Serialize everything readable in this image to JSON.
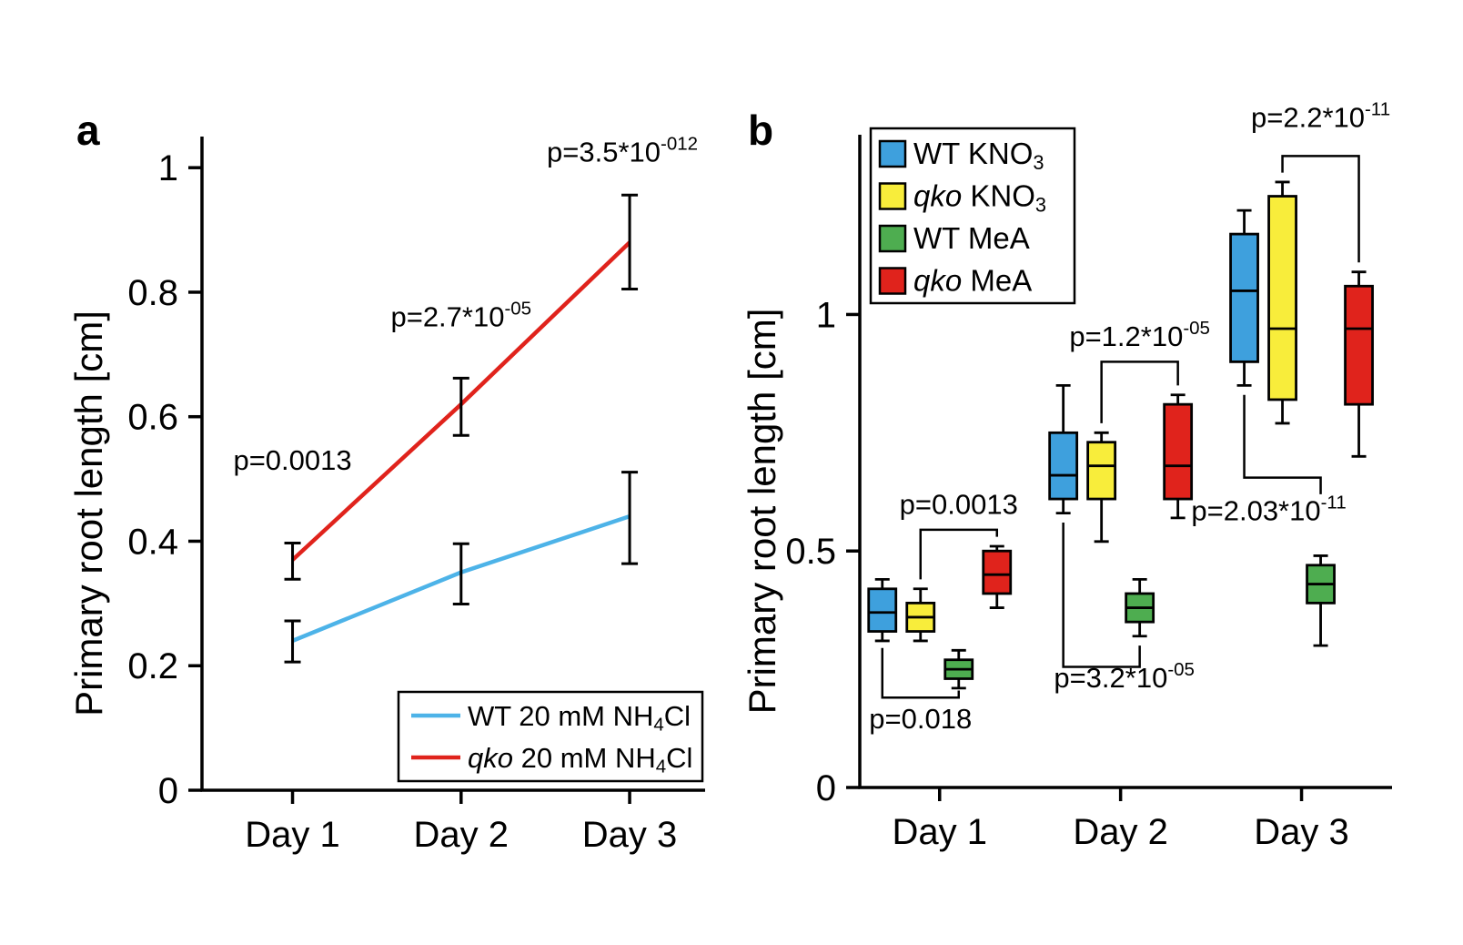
{
  "figure": {
    "background": "#ffffff",
    "text_color": "#000000"
  },
  "panels": {
    "a": {
      "label": "a"
    },
    "b": {
      "label": "b"
    }
  },
  "chart_data": [
    {
      "panel": "a",
      "type": "line",
      "title": "",
      "xlabel": "",
      "ylabel": "Primary root length [cm]",
      "ylim": [
        0,
        1.05
      ],
      "yticks": [
        0,
        0.2,
        0.4,
        0.6,
        0.8,
        1
      ],
      "ytick_labels": [
        "0",
        "0.2",
        "0.4",
        "0.6",
        "0.8",
        "1"
      ],
      "categories": [
        "Day 1",
        "Day 2",
        "Day 3"
      ],
      "grid": false,
      "legend_position": "bottom-right",
      "series": [
        {
          "name": "WT 20 mM NH4Cl",
          "label_segments": [
            {
              "t": "WT 20 mM NH"
            },
            {
              "t": "4",
              "sub": true
            },
            {
              "t": "Cl"
            }
          ],
          "color": "#4db3e8",
          "values": [
            0.24,
            0.35,
            0.44
          ],
          "err_minus": [
            0.034,
            0.051,
            0.076
          ],
          "err_plus": [
            0.032,
            0.046,
            0.071
          ]
        },
        {
          "name": "qko 20 mM NH4Cl",
          "label_segments": [
            {
              "t": "qko",
              "italic": true
            },
            {
              "t": " 20 mM NH"
            },
            {
              "t": "4",
              "sub": true
            },
            {
              "t": "Cl"
            }
          ],
          "color": "#e0231c",
          "values": [
            0.37,
            0.62,
            0.88
          ],
          "err_minus": [
            0.031,
            0.05,
            0.075
          ],
          "err_plus": [
            0.027,
            0.042,
            0.076
          ]
        }
      ],
      "annotations": [
        {
          "name": "p=0.0013",
          "segments": [
            {
              "t": "p=0.0013"
            }
          ],
          "day": 0,
          "y": 0.515,
          "dx": 0
        },
        {
          "name": "p=2.7*10^-05",
          "segments": [
            {
              "t": "p=2.7*10"
            },
            {
              "t": "-05",
              "sup": true
            }
          ],
          "day": 1,
          "y": 0.745,
          "dx": 0
        },
        {
          "name": "p=3.5*10^-012",
          "segments": [
            {
              "t": "p=3.5*10"
            },
            {
              "t": "-012",
              "sup": true
            }
          ],
          "day": 2,
          "y": 1.01,
          "dx": -8
        }
      ]
    },
    {
      "panel": "b",
      "type": "box",
      "title": "",
      "xlabel": "",
      "ylabel": "Primary root length [cm]",
      "ylim": [
        0,
        1.38
      ],
      "yticks": [
        0,
        0.5,
        1
      ],
      "ytick_labels": [
        "0",
        "0.5",
        "1"
      ],
      "categories": [
        "Day 1",
        "Day 2",
        "Day 3"
      ],
      "grid": false,
      "legend_position": "top-left",
      "groups": [
        {
          "name": "WT KNO3",
          "label_segments": [
            {
              "t": "WT KNO"
            },
            {
              "t": "3",
              "sub": true
            }
          ],
          "color": "#3ea0dd",
          "boxes": [
            {
              "low": 0.31,
              "q1": 0.33,
              "median": 0.37,
              "q3": 0.42,
              "high": 0.44
            },
            {
              "low": 0.58,
              "q1": 0.61,
              "median": 0.66,
              "q3": 0.75,
              "high": 0.85
            },
            {
              "low": 0.85,
              "q1": 0.9,
              "median": 1.05,
              "q3": 1.17,
              "high": 1.22
            }
          ]
        },
        {
          "name": "qko KNO3",
          "label_segments": [
            {
              "t": "qko",
              "italic": true
            },
            {
              "t": " KNO"
            },
            {
              "t": "3",
              "sub": true
            }
          ],
          "color": "#f8ed3b",
          "boxes": [
            {
              "low": 0.31,
              "q1": 0.33,
              "median": 0.36,
              "q3": 0.39,
              "high": 0.42
            },
            {
              "low": 0.52,
              "q1": 0.61,
              "median": 0.68,
              "q3": 0.73,
              "high": 0.75
            },
            {
              "low": 0.77,
              "q1": 0.82,
              "median": 0.97,
              "q3": 1.25,
              "high": 1.28
            }
          ]
        },
        {
          "name": "WT MeA",
          "label_segments": [
            {
              "t": "WT MeA"
            }
          ],
          "color": "#4ead50",
          "boxes": [
            {
              "low": 0.21,
              "q1": 0.23,
              "median": 0.25,
              "q3": 0.27,
              "high": 0.29
            },
            {
              "low": 0.32,
              "q1": 0.35,
              "median": 0.38,
              "q3": 0.41,
              "high": 0.44
            },
            {
              "low": 0.3,
              "q1": 0.39,
              "median": 0.43,
              "q3": 0.47,
              "high": 0.49
            }
          ]
        },
        {
          "name": "qko MeA",
          "label_segments": [
            {
              "t": "qko",
              "italic": true
            },
            {
              "t": " MeA"
            }
          ],
          "color": "#e0231c",
          "boxes": [
            {
              "low": 0.38,
              "q1": 0.41,
              "median": 0.45,
              "q3": 0.5,
              "high": 0.51
            },
            {
              "low": 0.57,
              "q1": 0.61,
              "median": 0.68,
              "q3": 0.81,
              "high": 0.83
            },
            {
              "low": 0.7,
              "q1": 0.81,
              "median": 0.97,
              "q3": 1.06,
              "high": 1.09
            }
          ]
        }
      ],
      "comparisons": [
        {
          "name": "p=0.018",
          "segments": [
            {
              "t": "p=0.018"
            }
          ],
          "day": 0,
          "g1": 0,
          "g2": 2,
          "bar_y": 0.19,
          "tip1": 0.295,
          "tip2": 0.205,
          "label_y": 0.125,
          "label_dx": 0
        },
        {
          "name": "p=0.0013",
          "segments": [
            {
              "t": "p=0.0013"
            }
          ],
          "day": 0,
          "g1": 1,
          "g2": 3,
          "bar_y": 0.545,
          "tip1": 0.44,
          "tip2": 0.53,
          "label_y": 0.578,
          "label_dx": 0
        },
        {
          "name": "p=3.2*10^-05",
          "segments": [
            {
              "t": "p=3.2*10"
            },
            {
              "t": "-05",
              "sup": true
            }
          ],
          "day": 1,
          "g1": 0,
          "g2": 2,
          "bar_y": 0.255,
          "tip1": 0.56,
          "tip2": 0.3,
          "label_y": 0.212,
          "label_dx": 25
        },
        {
          "name": "p=1.2*10^-05",
          "segments": [
            {
              "t": "p=1.2*10"
            },
            {
              "t": "-05",
              "sup": true
            }
          ],
          "day": 1,
          "g1": 1,
          "g2": 3,
          "bar_y": 0.9,
          "tip1": 0.77,
          "tip2": 0.85,
          "label_y": 0.933,
          "label_dx": 0
        },
        {
          "name": "p=2.03*10^-11",
          "segments": [
            {
              "t": "p=2.03*10"
            },
            {
              "t": "-11",
              "sup": true
            }
          ],
          "day": 2,
          "g1": 0,
          "g2": 2,
          "bar_y": 0.655,
          "tip1": 0.83,
          "tip2": 0.62,
          "label_y": 0.565,
          "label_dx": -15
        },
        {
          "name": "p=2.2*10^-11",
          "segments": [
            {
              "t": "p=2.2*10"
            },
            {
              "t": "-11",
              "sup": true
            }
          ],
          "day": 2,
          "g1": 1,
          "g2": 3,
          "bar_y": 1.335,
          "tip1": 1.3,
          "tip2": 1.11,
          "label_y": 1.396,
          "label_dx": 0
        }
      ]
    }
  ]
}
